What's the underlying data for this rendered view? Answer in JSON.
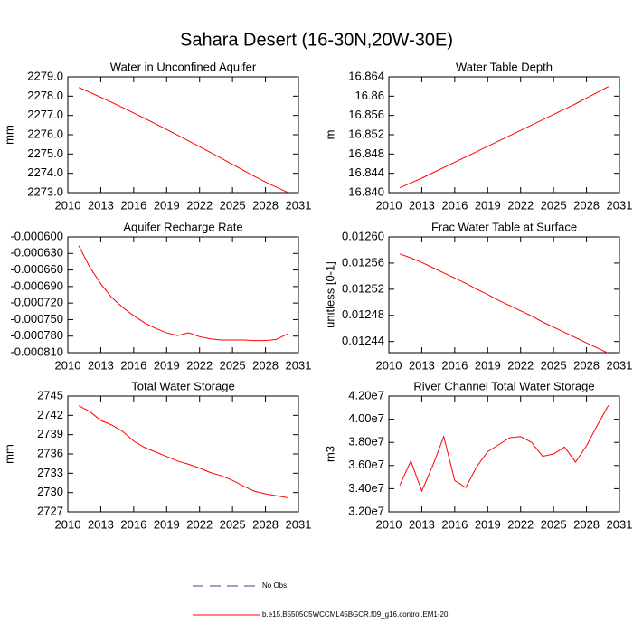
{
  "title": "Sahara Desert (16-30N,20W-30E)",
  "chart_data": [
    {
      "type": "line",
      "title": "Water in Unconfined Aquifer",
      "y_label": "mm",
      "x": [
        2011,
        2012,
        2013,
        2014,
        2015,
        2016,
        2017,
        2018,
        2019,
        2020,
        2021,
        2022,
        2023,
        2024,
        2025,
        2026,
        2027,
        2028,
        2029,
        2030
      ],
      "xlim": [
        2010,
        2031
      ],
      "xticks": [
        2010,
        2013,
        2016,
        2019,
        2022,
        2025,
        2028,
        2031
      ],
      "ylim": [
        2273,
        2279
      ],
      "yticks": [
        {
          "value": 2273,
          "label": "2273.0"
        },
        {
          "value": 2274,
          "label": "2274.0"
        },
        {
          "value": 2275,
          "label": "2275.0"
        },
        {
          "value": 2276,
          "label": "2276.0"
        },
        {
          "value": 2277,
          "label": "2277.0"
        },
        {
          "value": 2278,
          "label": "2278.0"
        },
        {
          "value": 2279,
          "label": "2279.0"
        }
      ],
      "series": [
        {
          "color": "#ff0000",
          "values": [
            2278.45,
            2278.2,
            2277.94,
            2277.68,
            2277.41,
            2277.13,
            2276.85,
            2276.56,
            2276.27,
            2275.98,
            2275.68,
            2275.38,
            2275.08,
            2274.77,
            2274.46,
            2274.15,
            2273.84,
            2273.55,
            2273.28,
            2273.02
          ]
        }
      ]
    },
    {
      "type": "line",
      "title": "Water Table Depth",
      "y_label": "m",
      "x": [
        2011,
        2012,
        2013,
        2014,
        2015,
        2016,
        2017,
        2018,
        2019,
        2020,
        2021,
        2022,
        2023,
        2024,
        2025,
        2026,
        2027,
        2028,
        2029,
        2030
      ],
      "xlim": [
        2010,
        2031
      ],
      "xticks": [
        2010,
        2013,
        2016,
        2019,
        2022,
        2025,
        2028,
        2031
      ],
      "ylim": [
        16.84,
        16.864
      ],
      "yticks": [
        {
          "value": 16.84,
          "label": "16.840"
        },
        16.844,
        16.848,
        16.852,
        16.856,
        16.86,
        16.864
      ],
      "series": [
        {
          "color": "#ff0000",
          "values": [
            16.841,
            16.842,
            16.843,
            16.8441,
            16.8452,
            16.8463,
            16.8474,
            16.8485,
            16.8496,
            16.8507,
            16.8518,
            16.8529,
            16.854,
            16.8551,
            16.8562,
            16.8573,
            16.8584,
            16.8596,
            16.8608,
            16.862
          ]
        }
      ]
    },
    {
      "type": "line",
      "title": "Aquifer Recharge Rate",
      "y_label": null,
      "x": [
        2011,
        2012,
        2013,
        2014,
        2015,
        2016,
        2017,
        2018,
        2019,
        2020,
        2021,
        2022,
        2023,
        2024,
        2025,
        2026,
        2027,
        2028,
        2029,
        2030
      ],
      "xlim": [
        2010,
        2031
      ],
      "xticks": [
        2010,
        2013,
        2016,
        2019,
        2022,
        2025,
        2028,
        2031
      ],
      "ylim": [
        -0.00081,
        -0.0006
      ],
      "yticks": [
        {
          "value": -0.00081,
          "label": "-0.000810"
        },
        {
          "value": -0.00078,
          "label": "-0.000780"
        },
        {
          "value": -0.00075,
          "label": "-0.000750"
        },
        {
          "value": -0.00072,
          "label": "-0.000720"
        },
        {
          "value": -0.00069,
          "label": "-0.000690"
        },
        {
          "value": -0.00066,
          "label": "-0.000660"
        },
        {
          "value": -0.00063,
          "label": "-0.000630"
        },
        {
          "value": -0.0006,
          "label": "-0.000600"
        }
      ],
      "series": [
        {
          "color": "#ff0000",
          "values": [
            -0.000616,
            -0.000655,
            -0.000685,
            -0.00071,
            -0.000728,
            -0.000743,
            -0.000756,
            -0.000766,
            -0.000774,
            -0.000779,
            -0.000774,
            -0.000781,
            -0.000785,
            -0.000787,
            -0.000787,
            -0.000787,
            -0.000788,
            -0.000788,
            -0.000786,
            -0.000776
          ]
        }
      ]
    },
    {
      "type": "line",
      "title": "Frac Water Table at Surface",
      "y_label": "unitless [0-1]",
      "x": [
        2011,
        2012,
        2013,
        2014,
        2015,
        2016,
        2017,
        2018,
        2019,
        2020,
        2021,
        2022,
        2023,
        2024,
        2025,
        2026,
        2027,
        2028,
        2029,
        2030
      ],
      "xlim": [
        2010,
        2031
      ],
      "xticks": [
        2010,
        2013,
        2016,
        2019,
        2022,
        2025,
        2028,
        2031
      ],
      "ylim": [
        0.012423,
        0.0126
      ],
      "yticks": [
        0.01244,
        0.01248,
        0.01252,
        0.01256,
        {
          "value": 0.0126,
          "label": "0.01260"
        }
      ],
      "series": [
        {
          "color": "#ff0000",
          "values": [
            0.012574,
            0.012568,
            0.012561,
            0.012553,
            0.012545,
            0.012537,
            0.012529,
            0.01252,
            0.012512,
            0.012503,
            0.012495,
            0.012487,
            0.012479,
            0.01247,
            0.012462,
            0.012454,
            0.012446,
            0.012438,
            0.01243,
            0.012422
          ]
        }
      ]
    },
    {
      "type": "line",
      "title": "Total Water Storage",
      "y_label": "mm",
      "x": [
        2011,
        2012,
        2013,
        2014,
        2015,
        2016,
        2017,
        2018,
        2019,
        2020,
        2021,
        2022,
        2023,
        2024,
        2025,
        2026,
        2027,
        2028,
        2029,
        2030
      ],
      "xlim": [
        2010,
        2031
      ],
      "xticks": [
        2010,
        2013,
        2016,
        2019,
        2022,
        2025,
        2028,
        2031
      ],
      "ylim": [
        2727,
        2745
      ],
      "yticks": [
        2727,
        2730,
        2733,
        2736,
        2739,
        2742,
        2745
      ],
      "series": [
        {
          "color": "#ff0000",
          "values": [
            2743.5,
            2742.6,
            2741.2,
            2740.5,
            2739.5,
            2738.0,
            2737.0,
            2736.3,
            2735.6,
            2734.9,
            2734.4,
            2733.8,
            2733.1,
            2732.6,
            2731.9,
            2731.0,
            2730.2,
            2729.8,
            2729.5,
            2729.2
          ]
        }
      ]
    },
    {
      "type": "line",
      "title": "River Channel Total Water Storage",
      "y_label": "m3",
      "x": [
        2011,
        2012,
        2013,
        2014,
        2015,
        2016,
        2017,
        2018,
        2019,
        2020,
        2021,
        2022,
        2023,
        2024,
        2025,
        2026,
        2027,
        2028,
        2029,
        2030
      ],
      "xlim": [
        2010,
        2031
      ],
      "xticks": [
        2010,
        2013,
        2016,
        2019,
        2022,
        2025,
        2028,
        2031
      ],
      "ylim": [
        32000000,
        42000000
      ],
      "yticks": [
        {
          "value": 32000000,
          "label": "3.20e7"
        },
        {
          "value": 34000000,
          "label": "3.40e7"
        },
        {
          "value": 36000000,
          "label": "3.60e7"
        },
        {
          "value": 38000000,
          "label": "3.80e7"
        },
        {
          "value": 40000000,
          "label": "4.00e7"
        },
        {
          "value": 42000000,
          "label": "4.20e7"
        }
      ],
      "series": [
        {
          "color": "#ff0000",
          "values": [
            34300000,
            36400000,
            33800000,
            36000000,
            38500000,
            34700000,
            34100000,
            35900000,
            37200000,
            37800000,
            38400000,
            38500000,
            38000000,
            36800000,
            37000000,
            37600000,
            36300000,
            37700000,
            39500000,
            41200000
          ]
        }
      ]
    }
  ],
  "legend": [
    {
      "name": "No Obs",
      "color": "#3c3c96",
      "dashed": true
    },
    {
      "name": "b.e15.B5505C5WCCML45BGCR.f09_g16.control.EM1-20",
      "color": "#ff0000",
      "dashed": false
    }
  ]
}
